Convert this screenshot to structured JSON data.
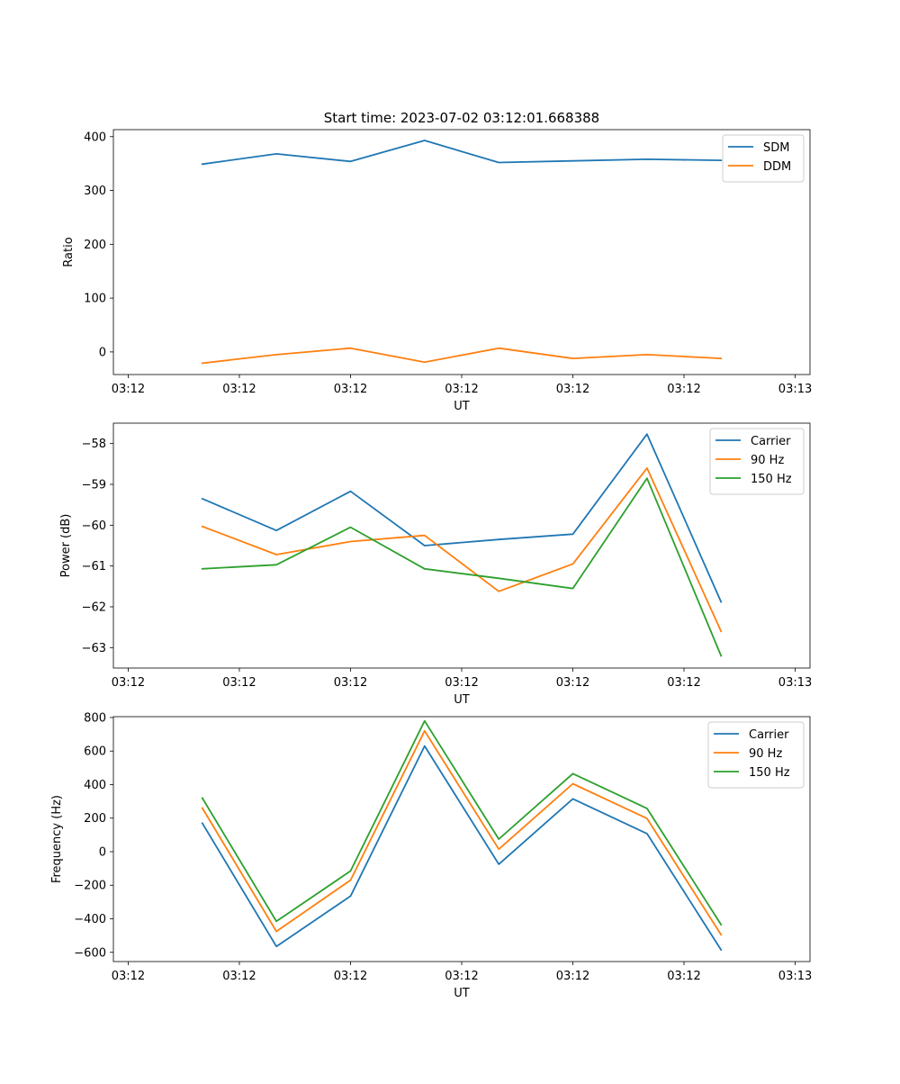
{
  "title": "Start time: 2023-07-02 03:12:01.668388",
  "chart_data": [
    {
      "type": "line",
      "xlabel": "UT",
      "ylabel": "Ratio",
      "x_tick_labels": [
        "03:12",
        "03:12",
        "03:12",
        "03:12",
        "03:12",
        "03:12",
        "03:13"
      ],
      "y_ticks": [
        0,
        100,
        200,
        300,
        400
      ],
      "ylim": [
        -42,
        413
      ],
      "x": [
        1,
        2,
        3,
        4,
        5,
        6,
        7,
        8
      ],
      "xlim": [
        -0.2,
        9.2
      ],
      "x_tick_positions": [
        0,
        1.5,
        3,
        4.5,
        6,
        7.5,
        9
      ],
      "legend": "top-right",
      "series": [
        {
          "name": "SDM",
          "color": "#1f77b4",
          "values": [
            349,
            368,
            354,
            393,
            352,
            355,
            358,
            356
          ]
        },
        {
          "name": "DDM",
          "color": "#ff7f0e",
          "values": [
            -21,
            -5,
            7,
            -19,
            7,
            -12,
            -5,
            -12
          ]
        }
      ]
    },
    {
      "type": "line",
      "xlabel": "UT",
      "ylabel": "Power (dB)",
      "x_tick_labels": [
        "03:12",
        "03:12",
        "03:12",
        "03:12",
        "03:12",
        "03:12",
        "03:13"
      ],
      "y_ticks": [
        -58,
        -59,
        -60,
        -61,
        -62,
        -63
      ],
      "ylim": [
        -63.5,
        -57.5
      ],
      "x": [
        1,
        2,
        3,
        4,
        5,
        6,
        7,
        8
      ],
      "xlim": [
        -0.2,
        9.2
      ],
      "x_tick_positions": [
        0,
        1.5,
        3,
        4.5,
        6,
        7.5,
        9
      ],
      "legend": "top-right",
      "series": [
        {
          "name": "Carrier",
          "color": "#1f77b4",
          "values": [
            -59.35,
            -60.13,
            -59.17,
            -60.5,
            -60.35,
            -60.22,
            -57.77,
            -61.88
          ]
        },
        {
          "name": "90 Hz",
          "color": "#ff7f0e",
          "values": [
            -60.03,
            -60.72,
            -60.4,
            -60.25,
            -61.62,
            -60.95,
            -58.6,
            -62.6
          ]
        },
        {
          "name": "150 Hz",
          "color": "#2ca02c",
          "values": [
            -61.07,
            -60.97,
            -60.05,
            -61.07,
            -61.3,
            -61.55,
            -58.85,
            -63.2
          ]
        }
      ]
    },
    {
      "type": "line",
      "xlabel": "UT",
      "ylabel": "Frequency (Hz)",
      "x_tick_labels": [
        "03:12",
        "03:12",
        "03:12",
        "03:12",
        "03:12",
        "03:12",
        "03:13"
      ],
      "y_ticks": [
        800,
        600,
        400,
        200,
        0,
        -200,
        -400,
        -600
      ],
      "ylim": [
        -655,
        805
      ],
      "x": [
        1,
        2,
        3,
        4,
        5,
        6,
        7,
        8
      ],
      "xlim": [
        -0.2,
        9.2
      ],
      "x_tick_positions": [
        0,
        1.5,
        3,
        4.5,
        6,
        7.5,
        9
      ],
      "legend": "top-right",
      "series": [
        {
          "name": "Carrier",
          "color": "#1f77b4",
          "values": [
            170,
            -565,
            -265,
            630,
            -75,
            315,
            108,
            -585
          ]
        },
        {
          "name": "90 Hz",
          "color": "#ff7f0e",
          "values": [
            260,
            -475,
            -170,
            720,
            15,
            405,
            198,
            -495
          ]
        },
        {
          "name": "150 Hz",
          "color": "#2ca02c",
          "values": [
            320,
            -415,
            -115,
            780,
            75,
            465,
            258,
            -435
          ]
        }
      ]
    }
  ]
}
